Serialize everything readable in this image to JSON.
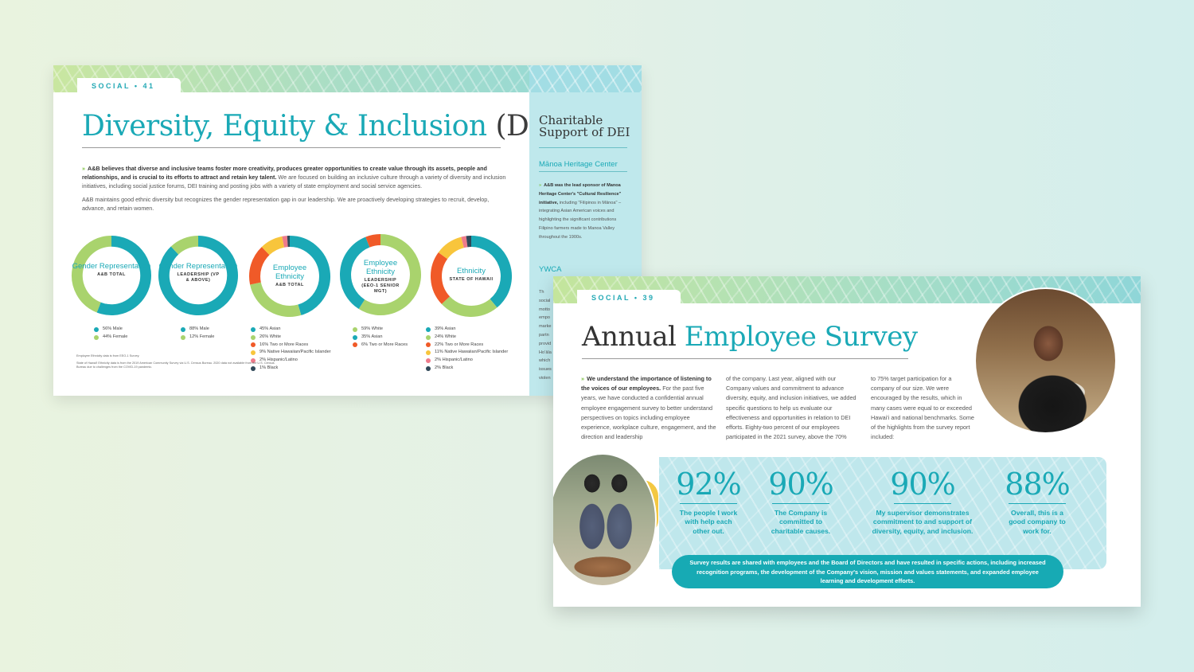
{
  "back_page": {
    "section_label": "SOCIAL  •  41",
    "title_main": "Diversity, Equity & Inclusion ",
    "title_abbr": "(DEI)",
    "intro_bold": "A&B believes that diverse and inclusive teams foster more creativity, produces greater opportunities to create value through its assets, people and relationships, and is crucial to its efforts to attract and retain key talent.",
    "intro_rest": " We are focused on building an inclusive culture through a variety of diversity and inclusion initiatives, including social justice forums, DEI training and posting jobs with a variety of state employment and social service agencies.",
    "intro_p2": "A&B maintains good ethnic diversity but recognizes the gender representation gap in our leadership. We are proactively developing strategies to recruit, develop, advance, and retain women.",
    "footnote_1": "Employee Ethnicity data is from EEO-1 Survey.",
    "footnote_2": "State of Hawai'i Ethnicity data is from the 2019 American Community Survey via U.S. Census Bureau. 2020 data not available from the U.S. Census Bureau due to challenges from the COVID-19 pandemic.",
    "sidebar": {
      "title_line1": "Charitable",
      "title_line2": "Support of DEI",
      "heading_1": "Mānoa Heritage Center",
      "body_bold": "A&B was the lead sponsor of Manoa Heritage Center's \"Cultural Resilience\" initiative,",
      "body_rest": " including \"Filipinos in Mānoa\" – integrating Asian American voices and highlighting the significant contributions Filipino farmers made to Manoa Valley throughout the 1900s.",
      "heading_2": "YWCA",
      "fragments": [
        "Th",
        "social",
        "motto",
        "empo",
        "marke",
        "partn",
        "provid",
        "Hoʻāla",
        "which",
        "issues",
        "violen"
      ]
    }
  },
  "chart_data": [
    {
      "type": "pie",
      "title": "Gender Representation",
      "subtitle": "A&B TOTAL",
      "labels": [
        "56% Male",
        "44% Female"
      ],
      "values": [
        56,
        44
      ],
      "colors": [
        "#1aa9b6",
        "#a9d36d"
      ]
    },
    {
      "type": "pie",
      "title": "Gender Representation",
      "subtitle": "LEADERSHIP (VP & ABOVE)",
      "labels": [
        "88% Male",
        "12% Female"
      ],
      "values": [
        88,
        12
      ],
      "colors": [
        "#1aa9b6",
        "#a9d36d"
      ]
    },
    {
      "type": "pie",
      "title": "Employee Ethnicity",
      "subtitle": "A&B TOTAL",
      "labels": [
        "45% Asian",
        "26% White",
        "16% Two or More Races",
        "9% Native Hawaiian/Pacific Islander",
        "2% Hispanic/Latino",
        "1% Black"
      ],
      "values": [
        45,
        26,
        16,
        9,
        2,
        1
      ],
      "colors": [
        "#1aa9b6",
        "#a9d36d",
        "#f05a28",
        "#f8c53c",
        "#ee7b8b",
        "#2f4858"
      ]
    },
    {
      "type": "pie",
      "title": "Employee Ethnicity",
      "subtitle": "LEADERSHIP (EEO-1 SENIOR MGT)",
      "labels": [
        "59% White",
        "35% Asian",
        "6% Two or More Races"
      ],
      "values": [
        59,
        35,
        6
      ],
      "colors": [
        "#a9d36d",
        "#1aa9b6",
        "#f05a28"
      ]
    },
    {
      "type": "pie",
      "title": "Ethnicity",
      "subtitle": "STATE OF HAWAII",
      "labels": [
        "39% Asian",
        "24% White",
        "22% Two or More Races",
        "11% Native Hawaiian/Pacific Islander",
        "2% Hispanic/Latino",
        "2% Black"
      ],
      "values": [
        39,
        24,
        22,
        11,
        2,
        2
      ],
      "colors": [
        "#1aa9b6",
        "#a9d36d",
        "#f05a28",
        "#f8c53c",
        "#ee7b8b",
        "#2f4858"
      ]
    }
  ],
  "front_page": {
    "section_label": "SOCIAL  •  39",
    "title_dark": "Annual ",
    "title_teal": "Employee Survey",
    "col1_bold": "We understand the importance of listening to the voices of our employees.",
    "col1_rest": " For the past five years, we have conducted a confidential annual employee engagement survey to better understand perspectives on topics including employee experience, workplace culture, engagement, and the direction and leadership",
    "col2": "of the company. Last year, aligned with our Company values and commitment to advance diversity, equity, and inclusion initiatives, we added specific questions to help us evaluate our effectiveness and opportunities in relation to DEI efforts. Eighty-two percent of our employees participated in the 2021 survey, above the 70%",
    "col3": "to 75% target participation for a company of our size. We were encouraged by the results, which in many cases were equal to or exceeded Hawai'i and national benchmarks. Some of the highlights from the survey report included:",
    "stats": [
      {
        "value": "92%",
        "label": "The people I work with help each other out."
      },
      {
        "value": "90%",
        "label": "The Company is committed to charitable causes."
      },
      {
        "value": "90%",
        "label": "My supervisor demonstrates commitment to and support of diversity, equity, and inclusion."
      },
      {
        "value": "88%",
        "label": "Overall, this is a good company to work for."
      }
    ],
    "pill_text": "Survey results are shared with employees and the Board of Directors and have resulted in specific actions, including increased recognition programs, the development of the Company's vision, mission and values statements, and expanded employee learning and development efforts."
  }
}
